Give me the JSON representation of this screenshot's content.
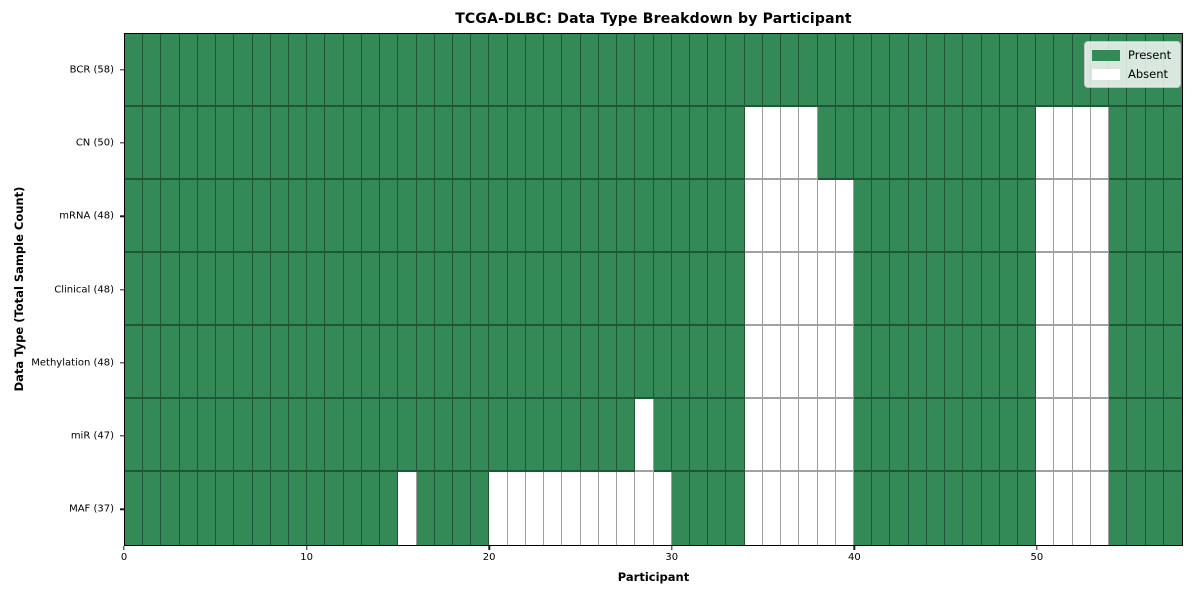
{
  "title": "TCGA-DLBC: Data Type Breakdown by Participant",
  "colors": {
    "present": "#338a57",
    "absent": "#ffffff",
    "grid_line": "rgba(0,0,0,0.38)",
    "axis": "#000000"
  },
  "legend": {
    "items": [
      {
        "label": "Present",
        "color": "#338a57"
      },
      {
        "label": "Absent",
        "color": "#ffffff"
      }
    ],
    "position": "upper right"
  },
  "chart_data": {
    "type": "heatmap",
    "title": "TCGA-DLBC: Data Type Breakdown by Participant",
    "xlabel": "Participant",
    "ylabel": "Data Type (Total Sample Count)",
    "x_range": [
      0,
      58
    ],
    "n_participants": 58,
    "x_ticks": [
      0,
      10,
      20,
      30,
      40,
      50
    ],
    "grid": true,
    "legend_position": "upper right",
    "value_legend": {
      "present": 1,
      "absent": 0
    },
    "rows": [
      {
        "label": "BCR (58)",
        "data_type": "BCR",
        "present_count": 58,
        "absent_participants": []
      },
      {
        "label": "CN (50)",
        "data_type": "CN",
        "present_count": 50,
        "absent_participants": [
          34,
          35,
          36,
          37,
          50,
          51,
          52,
          53
        ]
      },
      {
        "label": "mRNA (48)",
        "data_type": "mRNA",
        "present_count": 48,
        "absent_participants": [
          34,
          35,
          36,
          37,
          38,
          39,
          50,
          51,
          52,
          53
        ]
      },
      {
        "label": "Clinical (48)",
        "data_type": "Clinical",
        "present_count": 48,
        "absent_participants": [
          34,
          35,
          36,
          37,
          38,
          39,
          50,
          51,
          52,
          53
        ]
      },
      {
        "label": "Methylation (48)",
        "data_type": "Methylation",
        "present_count": 48,
        "absent_participants": [
          34,
          35,
          36,
          37,
          38,
          39,
          50,
          51,
          52,
          53
        ]
      },
      {
        "label": "miR (47)",
        "data_type": "miR",
        "present_count": 47,
        "absent_participants": [
          28,
          34,
          35,
          36,
          37,
          38,
          39,
          50,
          51,
          52,
          53
        ]
      },
      {
        "label": "MAF (37)",
        "data_type": "MAF",
        "present_count": 37,
        "absent_participants": [
          15,
          20,
          21,
          22,
          23,
          24,
          25,
          26,
          27,
          28,
          29,
          34,
          35,
          36,
          37,
          38,
          39,
          50,
          51,
          52,
          53
        ]
      }
    ]
  }
}
